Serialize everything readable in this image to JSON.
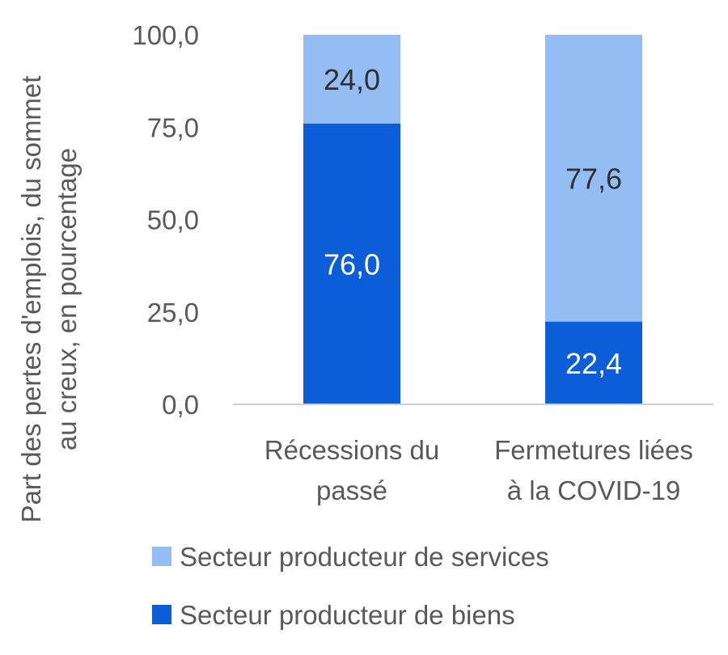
{
  "chart_data": {
    "type": "bar",
    "stacked": true,
    "categories": [
      [
        "Récessions du",
        "passé"
      ],
      [
        "Fermetures liées",
        "à la COVID-19"
      ]
    ],
    "series": [
      {
        "name": "Secteur producteur de biens",
        "values": [
          76.0,
          22.4
        ],
        "labels": [
          "76,0",
          "22,4"
        ],
        "color": "#0b5ed7",
        "label_color": "#ffffff"
      },
      {
        "name": "Secteur producteur de services",
        "values": [
          24.0,
          77.6
        ],
        "labels": [
          "24,0",
          "77,6"
        ],
        "color": "#94bdf5",
        "label_color": "#2f2f2f"
      }
    ],
    "ylabel": [
      "Part des pertes d'emplois, du sommet",
      "au creux, en pourcentage"
    ],
    "ylim": [
      0,
      100
    ],
    "yticks": [
      0,
      25,
      50,
      75,
      100
    ],
    "ytick_labels": [
      "0,0",
      "25,0",
      "50,0",
      "75,0",
      "100,0"
    ],
    "legend": {
      "position": "bottom",
      "items": [
        "Secteur producteur de services",
        "Secteur producteur de biens"
      ]
    },
    "colors": {
      "axis": "#d0d0d0",
      "text": "#595959"
    }
  }
}
